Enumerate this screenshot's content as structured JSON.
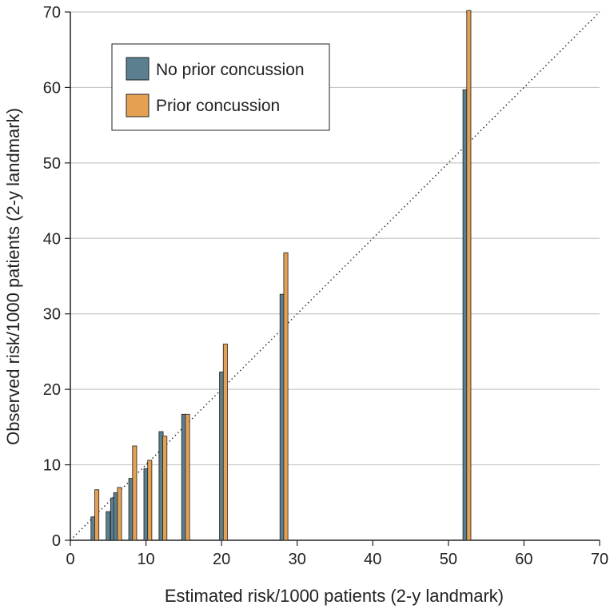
{
  "chart_data": {
    "type": "bar",
    "xlabel": "Estimated risk/1000 patients (2-y landmark)",
    "ylabel": "Observed risk/1000 patients (2-y landmark)",
    "xlim": [
      0,
      70
    ],
    "ylim": [
      0,
      70
    ],
    "xticks": [
      0,
      10,
      20,
      30,
      40,
      50,
      60,
      70
    ],
    "yticks": [
      0,
      10,
      20,
      30,
      40,
      50,
      60,
      70
    ],
    "grid": "horizontal",
    "reference_line": "diagonal dotted y = x",
    "legend_position": "top-left",
    "series": [
      {
        "name": "No prior concussion",
        "color": "#5b7f8f",
        "points": [
          {
            "x": 3.0,
            "y": 3.1
          },
          {
            "x": 5.0,
            "y": 3.8
          },
          {
            "x": 5.6,
            "y": 5.6
          },
          {
            "x": 6.0,
            "y": 6.3
          },
          {
            "x": 8.0,
            "y": 8.2
          },
          {
            "x": 10.0,
            "y": 9.5
          },
          {
            "x": 12.0,
            "y": 14.4
          },
          {
            "x": 15.0,
            "y": 16.7
          },
          {
            "x": 20.0,
            "y": 22.3
          },
          {
            "x": 28.0,
            "y": 32.6
          },
          {
            "x": 52.2,
            "y": 59.7
          }
        ]
      },
      {
        "name": "Prior concussion",
        "color": "#e5a052",
        "points": [
          {
            "x": 3.5,
            "y": 6.7
          },
          {
            "x": 6.5,
            "y": 7.0
          },
          {
            "x": 8.5,
            "y": 12.5
          },
          {
            "x": 10.5,
            "y": 10.6
          },
          {
            "x": 12.5,
            "y": 13.8
          },
          {
            "x": 15.5,
            "y": 16.7
          },
          {
            "x": 20.5,
            "y": 26.0
          },
          {
            "x": 28.5,
            "y": 38.1
          },
          {
            "x": 52.7,
            "y": 70.2
          }
        ]
      }
    ]
  }
}
